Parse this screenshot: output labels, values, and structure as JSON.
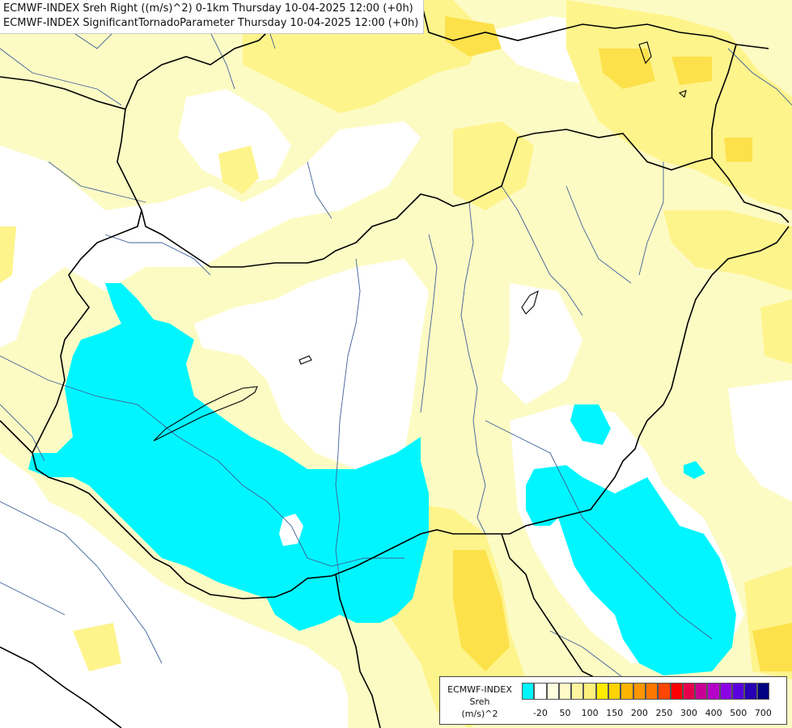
{
  "title": {
    "line1": "ECMWF-INDEX Sreh Right ((m/s)^2) 0-1km Thursday 10-04-2025 12:00 (+0h)",
    "line2": "ECMWF-INDEX SignificantTornadoParameter Thursday 10-04-2025 12:00 (+0h)"
  },
  "legend": {
    "line1": "ECMWF-INDEX",
    "line2": "Sreh",
    "line3": "(m/s)^2",
    "colors": [
      "#00f6ff",
      "#ffffff",
      "#ffffe0",
      "#fffac8",
      "#fff5a0",
      "#fff07c",
      "#ffeb00",
      "#ffd200",
      "#ffb400",
      "#ff9600",
      "#ff7800",
      "#ff4600",
      "#ff0000",
      "#e6004b",
      "#c80096",
      "#b400c8",
      "#8c00e6",
      "#5a00dc",
      "#2800b4",
      "#000080"
    ],
    "ticks": [
      "-20",
      "50",
      "100",
      "150",
      "200",
      "250",
      "300",
      "400",
      "500",
      "700"
    ]
  },
  "colors": {
    "sea_land_base": "#fdfbc4",
    "white_zone": "#ffffff",
    "yellow": "#fef48c",
    "strong_yellow": "#fde14a",
    "cyan": "#00f6ff",
    "border": "#000000",
    "river": "#3f5f9a"
  }
}
